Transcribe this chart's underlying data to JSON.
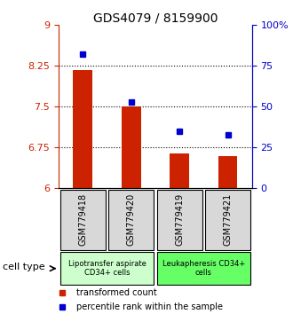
{
  "title": "GDS4079 / 8159900",
  "samples": [
    "GSM779418",
    "GSM779420",
    "GSM779419",
    "GSM779421"
  ],
  "transformed_count": [
    8.18,
    7.5,
    6.65,
    6.6
  ],
  "percentile_rank": [
    82,
    53,
    35,
    33
  ],
  "ylim_left": [
    6,
    9
  ],
  "ylim_right": [
    0,
    100
  ],
  "yticks_left": [
    6,
    6.75,
    7.5,
    8.25,
    9
  ],
  "yticks_right": [
    0,
    25,
    50,
    75,
    100
  ],
  "ytick_labels_left": [
    "6",
    "6.75",
    "7.5",
    "8.25",
    "9"
  ],
  "ytick_labels_right": [
    "0",
    "25",
    "50",
    "75",
    "100%"
  ],
  "hlines": [
    6.75,
    7.5,
    8.25
  ],
  "bar_color": "#cc2200",
  "dot_color": "#0000cc",
  "cell_type_groups": [
    {
      "label": "Lipotransfer aspirate\nCD34+ cells",
      "start": 0,
      "end": 2,
      "color": "#ccffcc"
    },
    {
      "label": "Leukapheresis CD34+\ncells",
      "start": 2,
      "end": 4,
      "color": "#66ff66"
    }
  ],
  "cell_type_label": "cell type",
  "legend_items": [
    {
      "color": "#cc2200",
      "label": "transformed count"
    },
    {
      "color": "#0000cc",
      "label": "percentile rank within the sample"
    }
  ],
  "bar_bottom": 6.0,
  "bg_color": "#ffffff",
  "tick_color_left": "#cc2200",
  "tick_color_right": "#0000cc",
  "sample_box_color": "#d8d8d8",
  "bar_width": 0.4
}
